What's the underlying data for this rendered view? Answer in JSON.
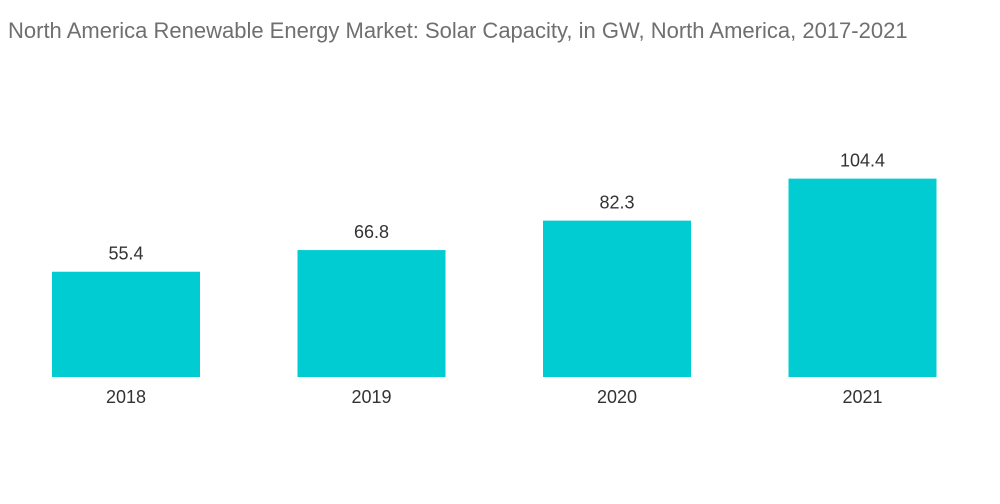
{
  "chart_data": {
    "type": "bar",
    "title": "North America Renewable Energy Market: Solar Capacity, in GW, North America, 2017-2021",
    "categories": [
      "2018",
      "2019",
      "2020",
      "2021"
    ],
    "values": [
      55.4,
      66.8,
      82.3,
      104.4
    ],
    "data_labels": [
      "55.4",
      "66.8",
      "82.3",
      "104.4"
    ],
    "xlabel": "",
    "ylabel": "",
    "ylim": [
      0,
      110
    ],
    "grid": false,
    "legend": "none",
    "bar_color": "#00ccd1"
  }
}
